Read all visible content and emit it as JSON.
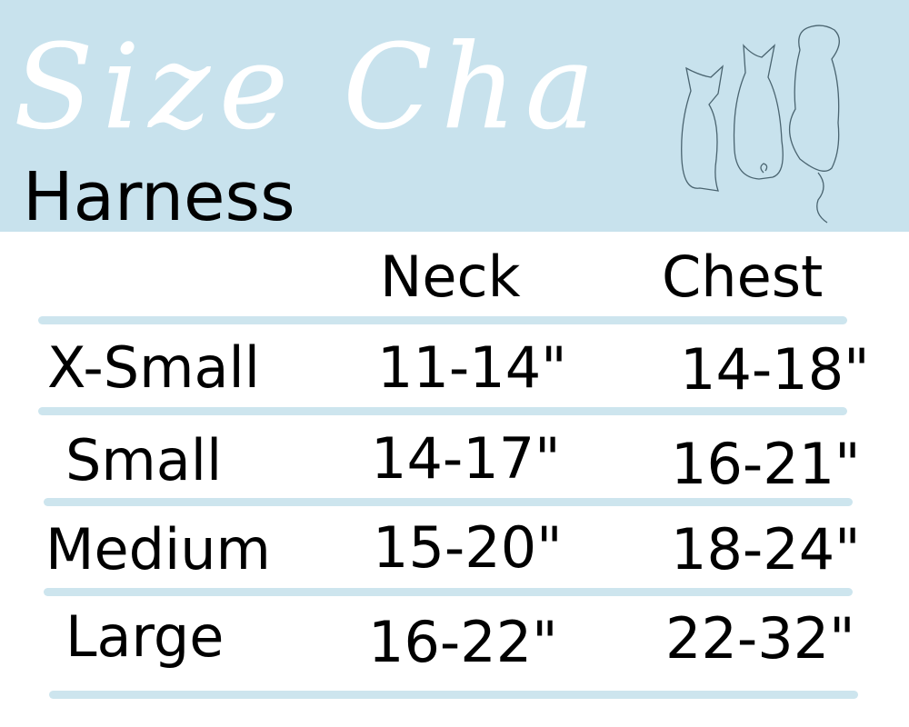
{
  "header": {
    "script_title": "Size Chart",
    "subtitle": "Harness",
    "illustration": "cat-cat-dog-outline"
  },
  "colors": {
    "banner": "#c8e2ed",
    "divider": "#cde5ee",
    "script_text": "#ffffff"
  },
  "table": {
    "columns": [
      "Neck",
      "Chest"
    ],
    "rows": [
      {
        "size": "X-Small",
        "neck": "11-14\"",
        "chest": "14-18\""
      },
      {
        "size": "Small",
        "neck": "14-17\"",
        "chest": "16-21\""
      },
      {
        "size": "Medium",
        "neck": "15-20\"",
        "chest": "18-24\""
      },
      {
        "size": "Large",
        "neck": "16-22\"",
        "chest": "22-32\""
      }
    ]
  }
}
